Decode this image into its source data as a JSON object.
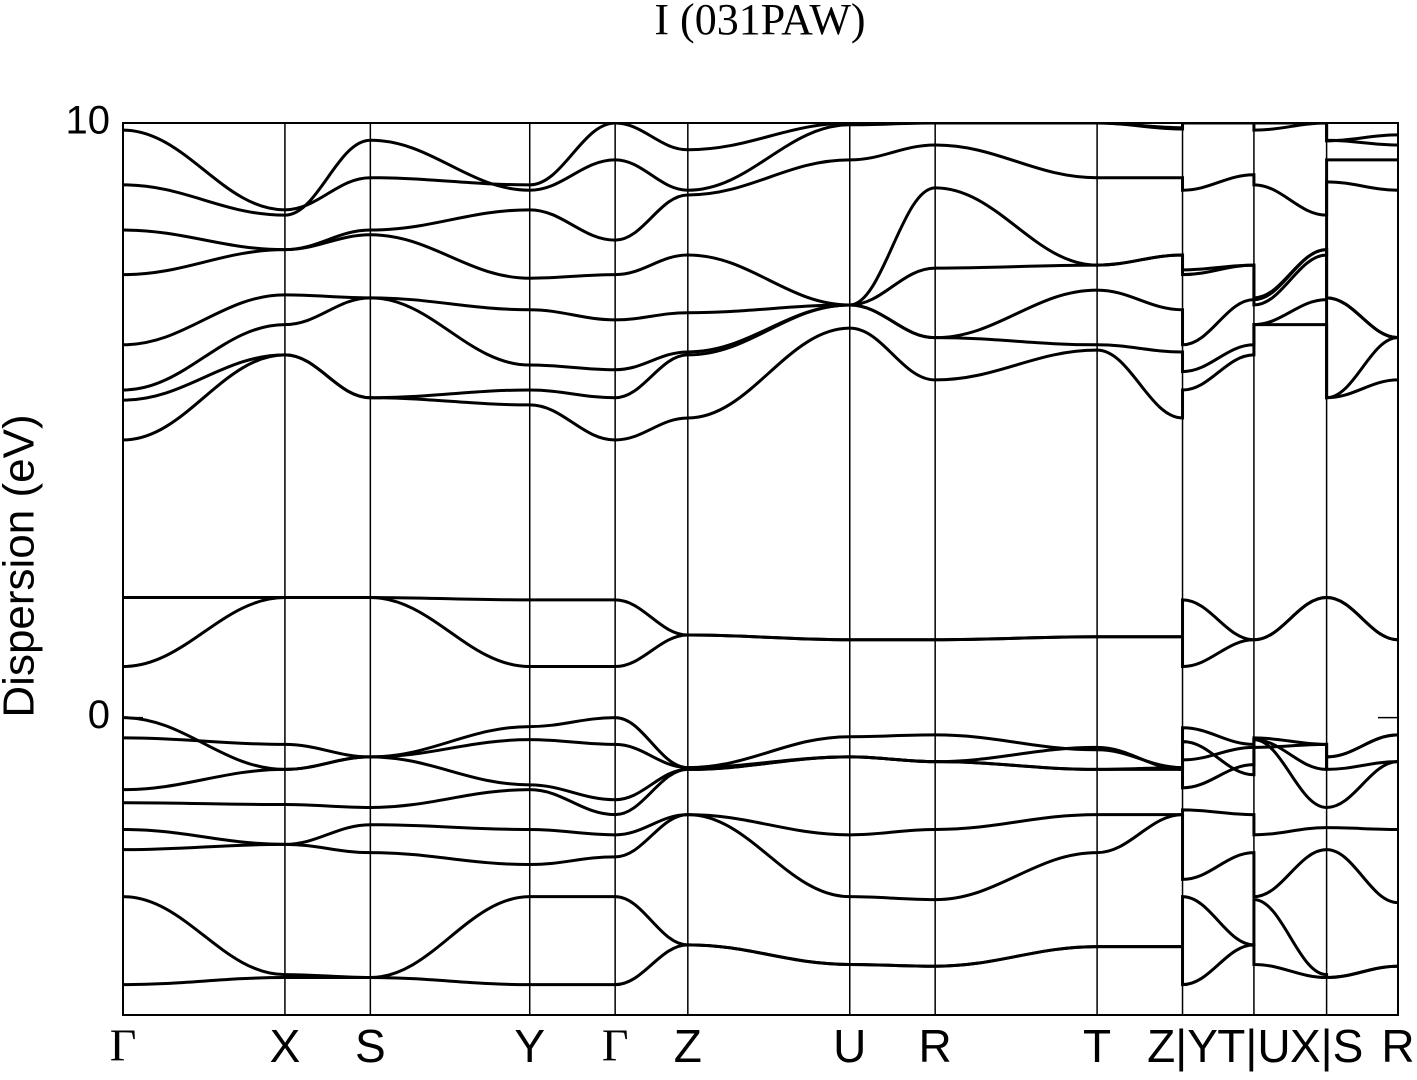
{
  "chart_data": {
    "type": "line",
    "title": "I (031PAW)",
    "ylabel": "Dispersion (eV)",
    "color": "#000000",
    "x": [
      0,
      0.127,
      0.194,
      0.319,
      0.386,
      0.443,
      0.57,
      0.637,
      0.764,
      0.831,
      0.831,
      0.887,
      0.887,
      0.944,
      0.944,
      1.0
    ],
    "xlim": [
      0,
      1.0
    ],
    "xticks": [
      {
        "value": 0,
        "label": "Γ"
      },
      {
        "value": 0.127,
        "label": "X"
      },
      {
        "value": 0.194,
        "label": "S"
      },
      {
        "value": 0.319,
        "label": "Y"
      },
      {
        "value": 0.386,
        "label": "Γ"
      },
      {
        "value": 0.443,
        "label": "Z"
      },
      {
        "value": 0.57,
        "label": "U"
      },
      {
        "value": 0.637,
        "label": "R"
      },
      {
        "value": 0.764,
        "label": "T"
      },
      {
        "value": 0.831,
        "label": "Z|Y"
      },
      {
        "value": 0.887,
        "label": "T|U"
      },
      {
        "value": 0.944,
        "label": "X|S"
      },
      {
        "value": 1.0,
        "label": "R"
      }
    ],
    "ylim": [
      -5,
      10
    ],
    "yticks": [
      0,
      10
    ],
    "series": [
      {
        "values": [
          -4.49,
          -4.37,
          -4.37,
          -4.49,
          -4.49,
          -3.82,
          -4.15,
          -4.18,
          -3.85,
          -3.85,
          -4.49,
          -3.82,
          -4.15,
          -4.37,
          -4.37,
          -4.18
        ]
      },
      {
        "values": [
          -3.01,
          -4.32,
          -4.37,
          -3.01,
          -3.01,
          -3.82,
          -4.15,
          -4.18,
          -3.85,
          -3.85,
          -3.01,
          -3.82,
          -3.06,
          -4.32,
          -4.37,
          -4.18
        ]
      },
      {
        "values": [
          -2.22,
          -2.13,
          -2.27,
          -2.47,
          -2.34,
          -1.63,
          -3.01,
          -3.06,
          -2.27,
          -1.63,
          -2.72,
          -2.27,
          -3.01,
          -2.22,
          -2.22,
          -3.11
        ]
      },
      {
        "values": [
          -1.88,
          -2.13,
          -1.8,
          -1.88,
          -1.97,
          -1.63,
          -1.97,
          -1.88,
          -1.63,
          -1.63,
          -1.55,
          -1.63,
          -1.97,
          -1.85,
          -1.85,
          -1.88
        ]
      },
      {
        "values": [
          -1.43,
          -1.46,
          -1.51,
          -1.21,
          -1.63,
          -0.87,
          -0.66,
          -0.74,
          -0.87,
          -0.87,
          -1.18,
          -0.79,
          -0.37,
          -1.51,
          -1.51,
          -0.74
        ]
      },
      {
        "values": [
          -1.21,
          -0.87,
          -0.66,
          -1.13,
          -1.38,
          -0.87,
          -0.66,
          -0.74,
          -0.5,
          -0.87,
          -0.71,
          -0.5,
          -0.5,
          -0.45,
          -0.87,
          -0.74
        ]
      },
      {
        "values": [
          -0.34,
          -0.45,
          -0.66,
          -0.37,
          -0.45,
          -0.84,
          -0.32,
          -0.29,
          -0.54,
          -0.84,
          -0.4,
          -0.96,
          -0.34,
          -0.45,
          -0.66,
          -0.29
        ]
      },
      {
        "values": [
          0,
          -0.87,
          -0.66,
          -0.15,
          0,
          -0.84,
          -0.66,
          -0.74,
          -0.87,
          -0.84,
          -0.17,
          -0.45,
          -0.37,
          -0.87,
          -0.66,
          -0.29
        ]
      },
      {
        "values": [
          0.86,
          2.02,
          2.02,
          0.86,
          0.86,
          1.39,
          1.31,
          1.31,
          1.36,
          1.36,
          0.86,
          1.31,
          1.31,
          2.02,
          2.02,
          1.31
        ]
      },
      {
        "values": [
          2.02,
          2.02,
          2.02,
          1.98,
          1.98,
          1.39,
          1.31,
          1.31,
          1.36,
          1.36,
          1.98,
          1.31,
          1.31,
          2.02,
          2.02,
          1.31
        ]
      },
      {
        "values": [
          4.67,
          6.1,
          5.38,
          5.26,
          4.67,
          5.04,
          6.55,
          5.68,
          6.18,
          5.04,
          5.51,
          6.1,
          6.61,
          6.61,
          5.38,
          5.68
        ]
      },
      {
        "values": [
          5.34,
          6.1,
          5.38,
          5.51,
          5.38,
          6.1,
          6.94,
          6.39,
          6.27,
          6.15,
          5.82,
          6.27,
          6.61,
          7.03,
          5.38,
          6.39
        ]
      },
      {
        "values": [
          5.51,
          6.61,
          7.06,
          5.93,
          5.85,
          6.15,
          6.94,
          6.39,
          7.19,
          6.86,
          6.27,
          7.03,
          7.03,
          7.87,
          7.06,
          6.39
        ]
      },
      {
        "values": [
          6.27,
          7.11,
          7.06,
          6.86,
          6.69,
          6.81,
          6.94,
          7.56,
          7.61,
          7.78,
          7.45,
          7.61,
          7.06,
          7.87,
          7.06,
          6.39
        ]
      },
      {
        "values": [
          7.45,
          7.87,
          8.12,
          7.39,
          7.45,
          7.78,
          6.94,
          8.91,
          7.61,
          7.78,
          7.53,
          7.61,
          6.94,
          7.78,
          9.01,
          8.87
        ]
      },
      {
        "values": [
          8.2,
          7.87,
          8.2,
          8.54,
          8.03,
          8.79,
          9.38,
          9.63,
          9.08,
          9.08,
          8.87,
          9.13,
          8.96,
          8.45,
          9.38,
          9.38
        ]
      },
      {
        "values": [
          8.96,
          8.45,
          9.71,
          8.87,
          9.38,
          8.87,
          9.97,
          10,
          10,
          9.92,
          10,
          10,
          9.88,
          10,
          9.71,
          9.63
        ]
      },
      {
        "values": [
          9.88,
          8.54,
          9.08,
          8.96,
          10,
          9.55,
          10,
          10,
          10,
          9.9,
          10,
          10,
          10,
          10,
          9.7,
          9.8
        ]
      }
    ]
  }
}
